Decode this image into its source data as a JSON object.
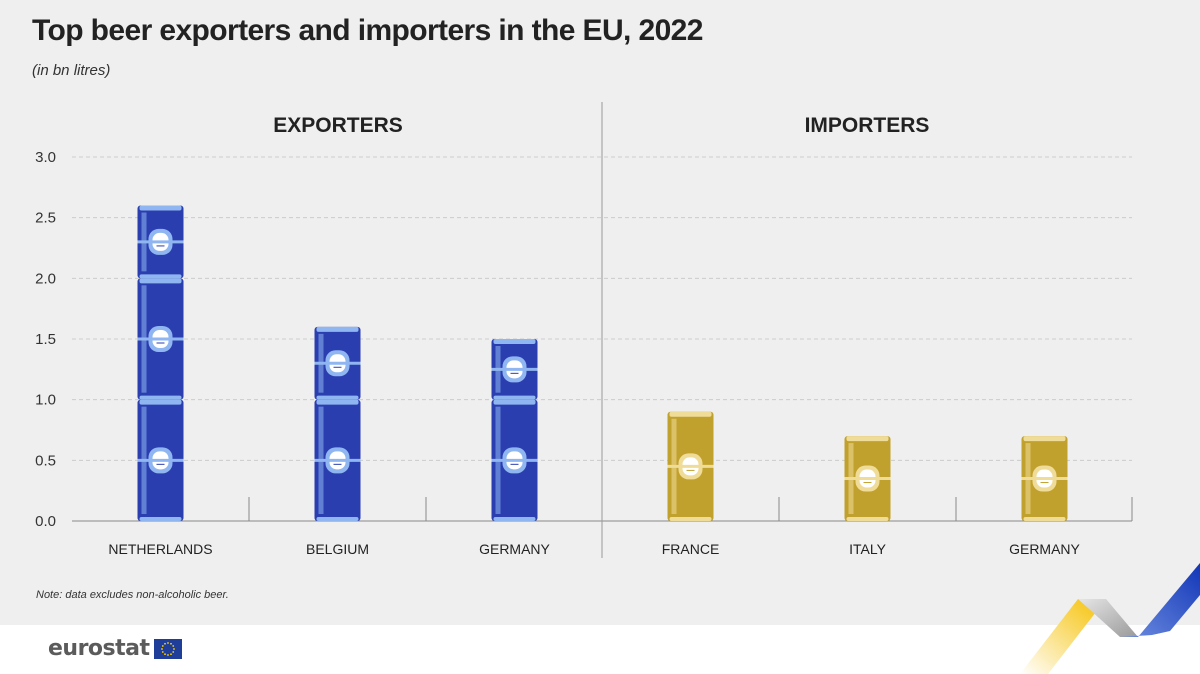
{
  "title": "Top beer exporters and importers in the EU, 2022",
  "subtitle": "(in bn litres)",
  "note": "Note: data excludes non-alcoholic beer.",
  "logo": {
    "text": "eurostat",
    "flag_icon": "eu-flag-icon"
  },
  "colors": {
    "exporter_can": "#2b3eb0",
    "exporter_can_light": "#8fb6f0",
    "importer_can": "#c1a12e",
    "importer_can_light": "#f0dc99",
    "grid": "#cccccc",
    "axis": "#888888"
  },
  "chart_data": {
    "type": "bar",
    "title": "Top beer exporters and importers in the EU, 2022",
    "subtitle": "(in bn litres)",
    "xlabel": "",
    "ylabel": "",
    "ylim": [
      0,
      3.0
    ],
    "yticks": [
      0.0,
      0.5,
      1.0,
      1.5,
      2.0,
      2.5,
      3.0
    ],
    "ytick_labels": [
      "0.0",
      "0.5",
      "1.0",
      "1.5",
      "2.0",
      "2.5",
      "3.0"
    ],
    "grid": true,
    "can_unit": 1.0,
    "groups": [
      {
        "name": "EXPORTERS",
        "color": "#2b3eb0",
        "categories": [
          "NETHERLANDS",
          "BELGIUM",
          "GERMANY"
        ],
        "values": [
          2.6,
          1.6,
          1.5
        ]
      },
      {
        "name": "IMPORTERS",
        "color": "#c1a12e",
        "categories": [
          "FRANCE",
          "ITALY",
          "GERMANY"
        ],
        "values": [
          0.9,
          0.7,
          0.7
        ]
      }
    ]
  }
}
